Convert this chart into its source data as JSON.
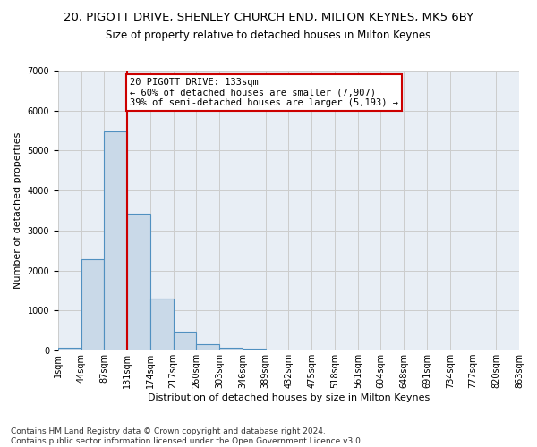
{
  "title1": "20, PIGOTT DRIVE, SHENLEY CHURCH END, MILTON KEYNES, MK5 6BY",
  "title2": "Size of property relative to detached houses in Milton Keynes",
  "xlabel": "Distribution of detached houses by size in Milton Keynes",
  "ylabel": "Number of detached properties",
  "footnote": "Contains HM Land Registry data © Crown copyright and database right 2024.\nContains public sector information licensed under the Open Government Licence v3.0.",
  "bar_values": [
    75,
    2280,
    5480,
    3430,
    1310,
    470,
    155,
    80,
    55,
    0,
    0,
    0,
    0,
    0,
    0,
    0,
    0,
    0,
    0,
    0
  ],
  "bin_labels": [
    "1sqm",
    "44sqm",
    "87sqm",
    "131sqm",
    "174sqm",
    "217sqm",
    "260sqm",
    "303sqm",
    "346sqm",
    "389sqm",
    "432sqm",
    "475sqm",
    "518sqm",
    "561sqm",
    "604sqm",
    "648sqm",
    "691sqm",
    "734sqm",
    "777sqm",
    "820sqm",
    "863sqm"
  ],
  "bar_color": "#c9d9e8",
  "bar_edge_color": "#5090c0",
  "property_line_bin": 3,
  "annotation_text": "20 PIGOTT DRIVE: 133sqm\n← 60% of detached houses are smaller (7,907)\n39% of semi-detached houses are larger (5,193) →",
  "annotation_box_color": "#ffffff",
  "annotation_box_edge": "#cc0000",
  "vline_color": "#cc0000",
  "ylim": [
    0,
    7000
  ],
  "yticks": [
    0,
    1000,
    2000,
    3000,
    4000,
    5000,
    6000,
    7000
  ],
  "grid_color": "#cccccc",
  "bg_color": "#e8eef5",
  "title1_fontsize": 9.5,
  "title2_fontsize": 8.5,
  "axis_label_fontsize": 8,
  "tick_fontsize": 7,
  "annotation_fontsize": 7.5,
  "footnote_fontsize": 6.5
}
